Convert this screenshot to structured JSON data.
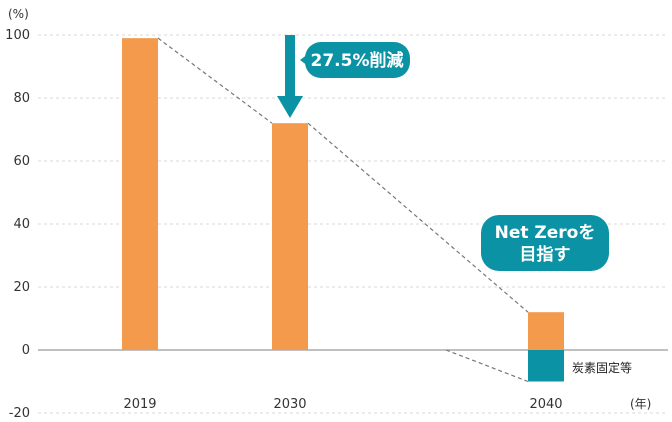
{
  "chart_data": {
    "type": "bar",
    "y_unit": "(%)",
    "x_unit": "(年)",
    "ylim": [
      -20,
      100
    ],
    "yticks": [
      100,
      80,
      60,
      40,
      20,
      0,
      -20
    ],
    "grid": true,
    "categories": [
      "2019",
      "2030",
      "2040"
    ],
    "series": [
      {
        "values": [
          99,
          72,
          12
        ],
        "color": "#F39A4D"
      },
      {
        "name": "炭素固定等",
        "values": [
          0,
          0,
          -10
        ],
        "color": "#0B93A5"
      }
    ],
    "annotations": [
      {
        "text": "27.5%削減",
        "target": "2030"
      },
      {
        "text_lines": [
          "Net Zeroを",
          "目指す"
        ],
        "target": "2040"
      }
    ],
    "trend_line": {
      "style": "dashed",
      "color": "#777777"
    }
  },
  "colors": {
    "bar_orange": "#F39A4D",
    "teal": "#0B93A5",
    "grid": "#D9D9D9",
    "axis": "#9A9A9A"
  }
}
